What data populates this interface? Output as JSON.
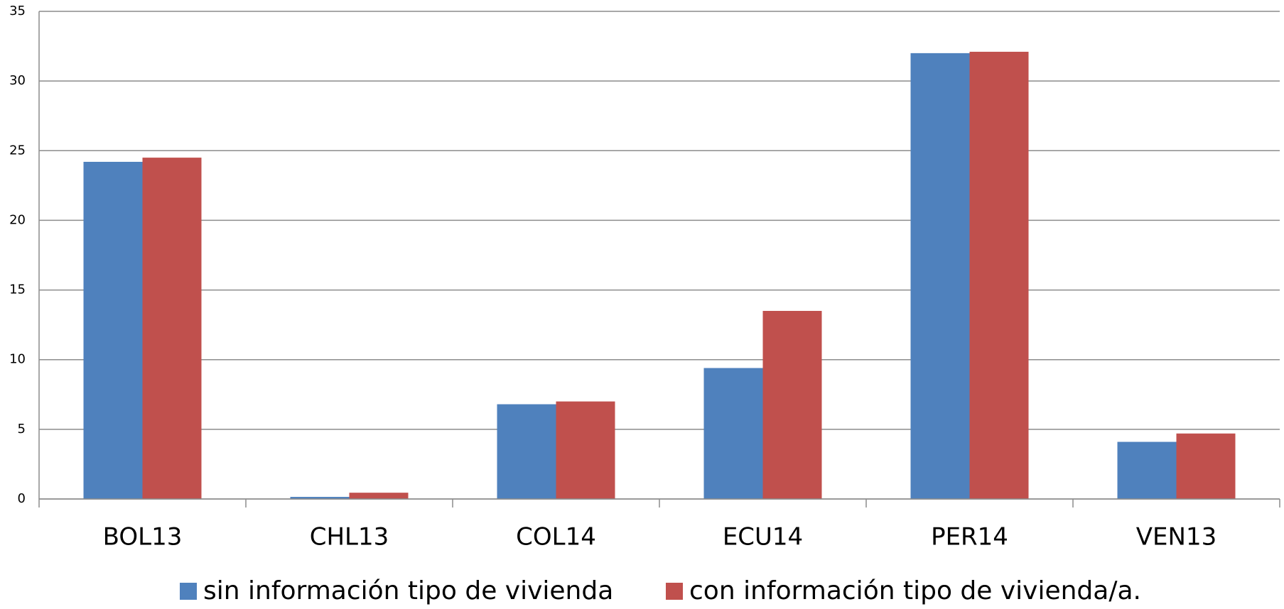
{
  "chart_data": {
    "type": "bar",
    "categories": [
      "BOL13",
      "CHL13",
      "COL14",
      "ECU14",
      "PER14",
      "VEN13"
    ],
    "series": [
      {
        "name": "sin información tipo de vivienda",
        "color": "#4f81bd",
        "values": [
          24.2,
          0.15,
          6.8,
          9.4,
          32.0,
          4.1
        ]
      },
      {
        "name": "con información tipo de vivienda/a.",
        "color": "#c0504d",
        "values": [
          24.5,
          0.45,
          7.0,
          13.5,
          32.1,
          4.7
        ]
      }
    ],
    "ylim": [
      0,
      35
    ],
    "yticks": [
      0,
      5,
      10,
      15,
      20,
      25,
      30,
      35
    ],
    "grid": true,
    "legend": "bottom"
  }
}
